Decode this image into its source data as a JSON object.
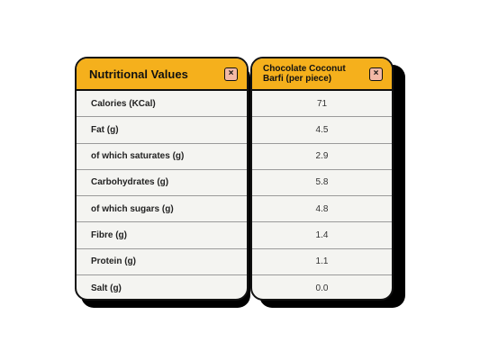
{
  "left_table": {
    "title": "Nutritional Values",
    "close_icon": "×",
    "rows": [
      "Calories (KCal)",
      "Fat (g)",
      "of which saturates (g)",
      "Carbohydrates (g)",
      "of which sugars (g)",
      "Fibre (g)",
      "Protein (g)",
      "Salt (g)"
    ]
  },
  "right_table": {
    "title": "Chocolate Coconut Barfi (per piece)",
    "close_icon": "×",
    "rows": [
      "71",
      "4.5",
      "2.9",
      "5.8",
      "4.8",
      "1.4",
      "1.1",
      "0.0"
    ]
  },
  "colors": {
    "header": "#f5b01c",
    "close_button": "#f3b9a6",
    "card_background": "#f4f4f1",
    "border": "#111111"
  }
}
